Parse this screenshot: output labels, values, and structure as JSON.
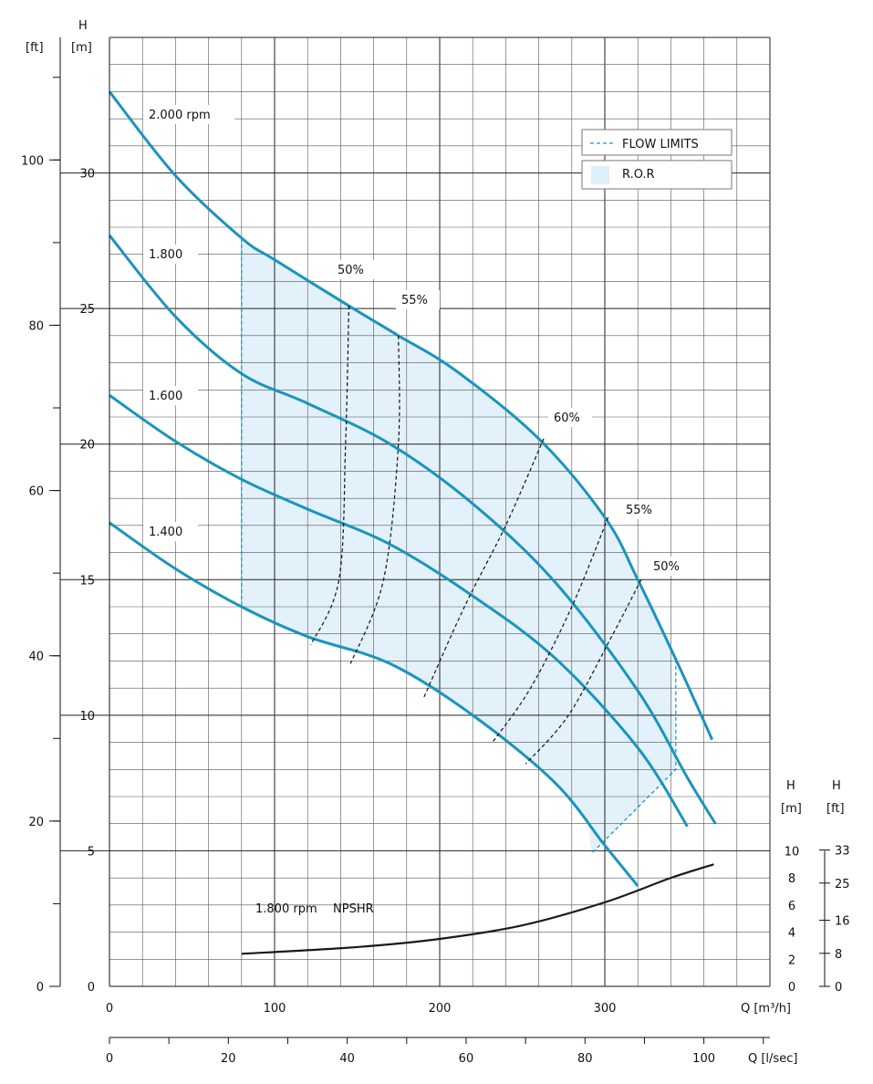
{
  "chart_data": {
    "type": "line",
    "x_axis_flow": {
      "label": "Q [m³/h]",
      "ticks": [
        0,
        100,
        200,
        300
      ],
      "range": [
        0,
        400
      ]
    },
    "x_axis_flow_ls": {
      "label": "Q [l/sec]",
      "ticks": [
        0,
        20,
        40,
        60,
        80,
        100
      ]
    },
    "y_axis_m": {
      "label_top": "H",
      "label_unit": "[m]",
      "ticks": [
        0,
        5,
        10,
        15,
        20,
        25,
        30
      ],
      "range": [
        0,
        35
      ]
    },
    "y_axis_ft": {
      "label_unit": "[ft]",
      "ticks": [
        0,
        20,
        40,
        60,
        80,
        100
      ]
    },
    "npsh_axis_m": {
      "label_top": "H",
      "label_unit": "[m]",
      "ticks": [
        0,
        2,
        4,
        6,
        8,
        10
      ]
    },
    "npsh_axis_ft": {
      "label_top": "H",
      "label_unit": "[ft]",
      "ticks": [
        0,
        8,
        16,
        25,
        33
      ]
    },
    "series": [
      {
        "name": "2.000 rpm",
        "x": [
          0,
          40,
          80,
          100,
          145,
          175,
          210,
          260,
          300,
          320,
          345,
          365
        ],
        "y": [
          33,
          29.9,
          27.6,
          26.8,
          25.1,
          24.0,
          22.7,
          20.2,
          17.3,
          15.0,
          11.8,
          9.1
        ]
      },
      {
        "name": "1.800",
        "x": [
          0,
          40,
          80,
          120,
          170,
          220,
          270,
          320,
          350,
          367
        ],
        "y": [
          27.7,
          24.7,
          22.6,
          21.5,
          20.0,
          17.8,
          14.9,
          10.9,
          7.7,
          6.0
        ]
      },
      {
        "name": "1.600",
        "x": [
          0,
          40,
          80,
          120,
          170,
          220,
          270,
          320,
          350
        ],
        "y": [
          21.8,
          20.1,
          18.7,
          17.6,
          16.3,
          14.4,
          12.1,
          8.8,
          5.9
        ]
      },
      {
        "name": "1.400",
        "x": [
          0,
          40,
          80,
          120,
          170,
          220,
          270,
          300,
          320
        ],
        "y": [
          17.1,
          15.4,
          14.0,
          12.9,
          11.9,
          10.0,
          7.5,
          5.2,
          3.7
        ]
      }
    ],
    "npshr": {
      "name": "1.800 rpm",
      "label": "NPSHR",
      "x": [
        80,
        150,
        200,
        250,
        300,
        340,
        366
      ],
      "y_m": [
        2.4,
        2.9,
        3.5,
        4.5,
        6.2,
        8.0,
        9.0
      ]
    },
    "efficiency_labels": [
      "50%",
      "55%",
      "60%",
      "55%",
      "50%"
    ],
    "legend": {
      "flow_limits": "FLOW  LIMITS",
      "ror": "R.O.R",
      "position": "top-right"
    },
    "colors": {
      "curve": "#1a94bd",
      "ror_fill": "#ddeff9"
    }
  }
}
